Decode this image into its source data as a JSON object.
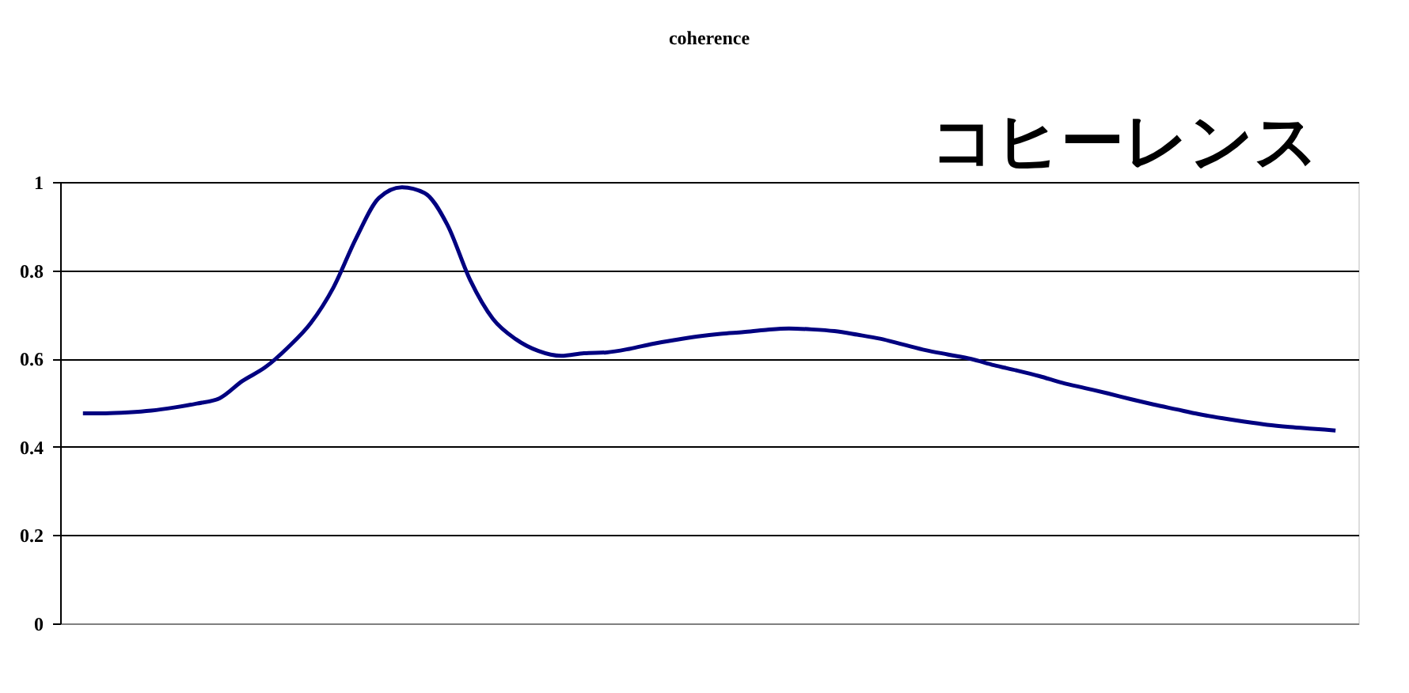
{
  "chart_data": {
    "type": "line",
    "title": "coherence",
    "annotations": [
      "コヒーレンス"
    ],
    "categories": [
      null,
      null,
      null,
      null,
      null,
      null,
      null,
      null,
      null,
      null,
      null,
      null,
      null,
      null,
      null,
      null,
      null,
      null,
      null,
      null,
      null,
      null,
      null,
      null,
      null,
      null,
      null,
      null,
      null,
      null,
      null,
      null,
      null,
      null,
      null,
      null,
      null,
      null,
      null,
      null,
      null,
      null,
      null,
      null,
      null,
      null,
      null,
      null,
      null,
      null,
      null,
      null,
      null,
      null,
      null,
      null
    ],
    "series": [
      {
        "color": "#000080",
        "values": [
          0.476,
          0.476,
          0.478,
          0.482,
          0.489,
          0.498,
          0.51,
          0.549,
          0.58,
          0.625,
          0.68,
          0.761,
          0.873,
          0.964,
          0.988,
          0.975,
          0.903,
          0.778,
          0.69,
          0.644,
          0.617,
          0.606,
          0.612,
          0.614,
          0.622,
          0.633,
          0.642,
          0.65,
          0.656,
          0.66,
          0.665,
          0.668,
          0.666,
          0.662,
          0.654,
          0.645,
          0.632,
          0.619,
          0.609,
          0.599,
          0.585,
          0.573,
          0.56,
          0.545,
          0.533,
          0.521,
          0.508,
          0.496,
          0.485,
          0.474,
          0.465,
          0.457,
          0.45,
          0.445,
          0.441,
          0.437
        ]
      }
    ],
    "ylim": [
      0,
      1
    ],
    "yticks": [
      0,
      0.2,
      0.4,
      0.6,
      0.8,
      1
    ],
    "grid": "y",
    "tick_labels": "y",
    "legend": false,
    "marker": "none",
    "line_style": "solid"
  }
}
